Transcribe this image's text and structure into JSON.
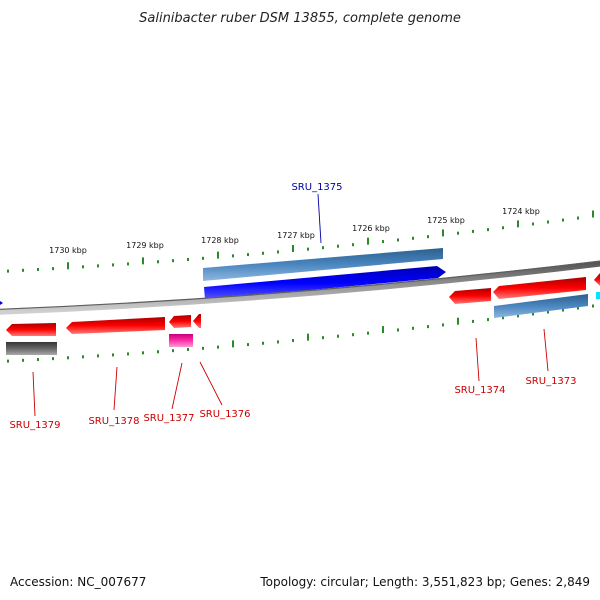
{
  "title": "Salinibacter ruber DSM 13855, complete genome",
  "footer": {
    "accession": "Accession: NC_007677",
    "summary": "Topology: circular; Length: 3,551,823 bp; Genes: 2,849"
  },
  "colors": {
    "backbone": "#8a8a8a",
    "tick": "#2a8a2a",
    "forward_cds": "#0000e6",
    "forward_gene": "#3f7bb0",
    "reverse_cds": "#e60000",
    "reverse_gene": "#3f7bb0",
    "pseudo": "#555555",
    "rna": "#ff3fb0",
    "label_forward": "#0000aa",
    "label_reverse": "#cc0000"
  },
  "scale_ticks": [
    "1730 kbp",
    "1729 kbp",
    "1728 kbp",
    "1727 kbp",
    "1726 kbp",
    "1725 kbp",
    "1724 kbp"
  ],
  "gene_labels": [
    {
      "text": "SRU_1375",
      "strand": "forward"
    },
    {
      "text": "SRU_1374",
      "strand": "reverse"
    },
    {
      "text": "SRU_1373",
      "strand": "reverse"
    },
    {
      "text": "SRU_1379",
      "strand": "reverse"
    },
    {
      "text": "SRU_1378",
      "strand": "reverse"
    },
    {
      "text": "SRU_1377",
      "strand": "reverse"
    },
    {
      "text": "SRU_1376",
      "strand": "reverse"
    }
  ]
}
